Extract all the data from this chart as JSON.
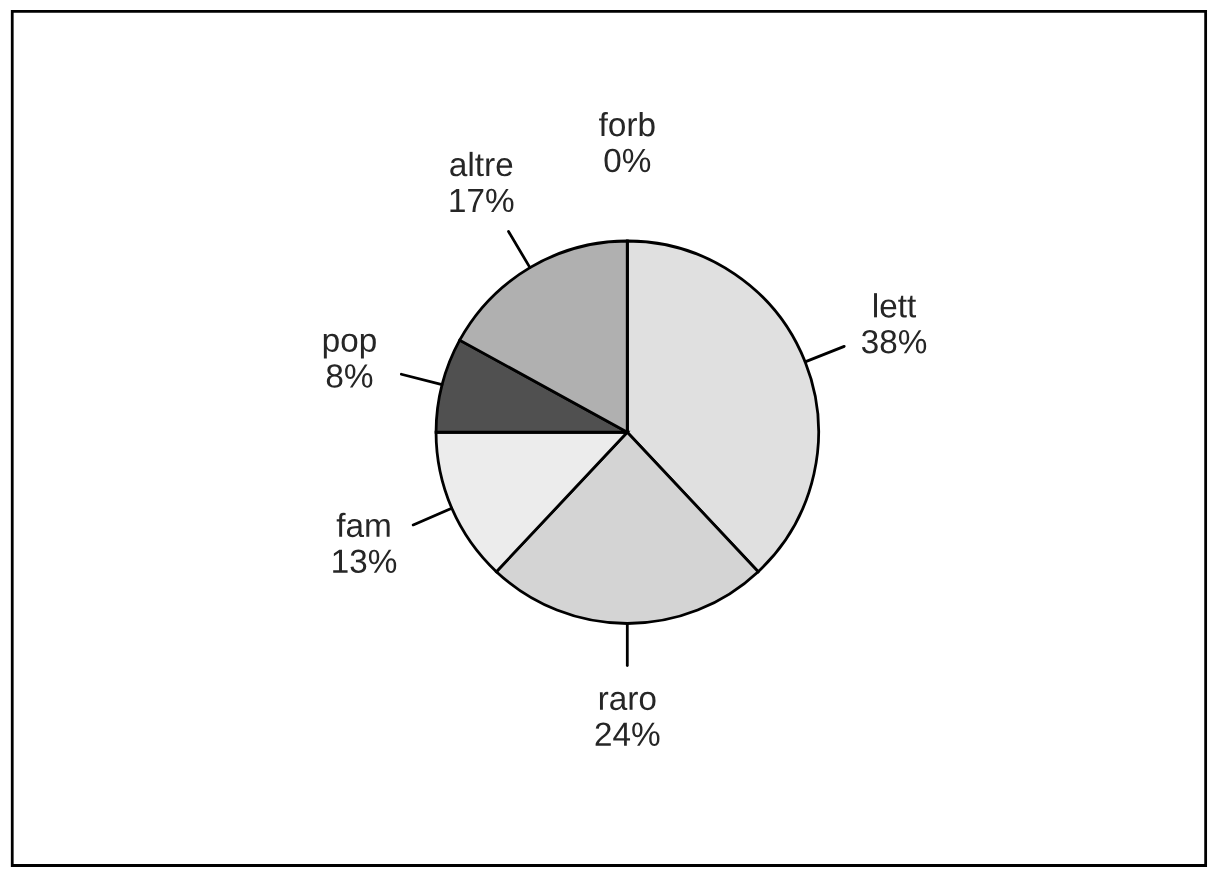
{
  "chart_data": {
    "type": "pie",
    "categories": [
      "lett",
      "raro",
      "fam",
      "pop",
      "altre",
      "forb"
    ],
    "values": [
      38,
      24,
      13,
      8,
      17,
      0
    ],
    "value_labels": [
      "38%",
      "24%",
      "13%",
      "8%",
      "17%",
      "0%"
    ],
    "colors": [
      "#e0e0e0",
      "#d4d4d4",
      "#ececec",
      "#505050",
      "#b0b0b0",
      "#ffffff"
    ],
    "legend": false
  }
}
